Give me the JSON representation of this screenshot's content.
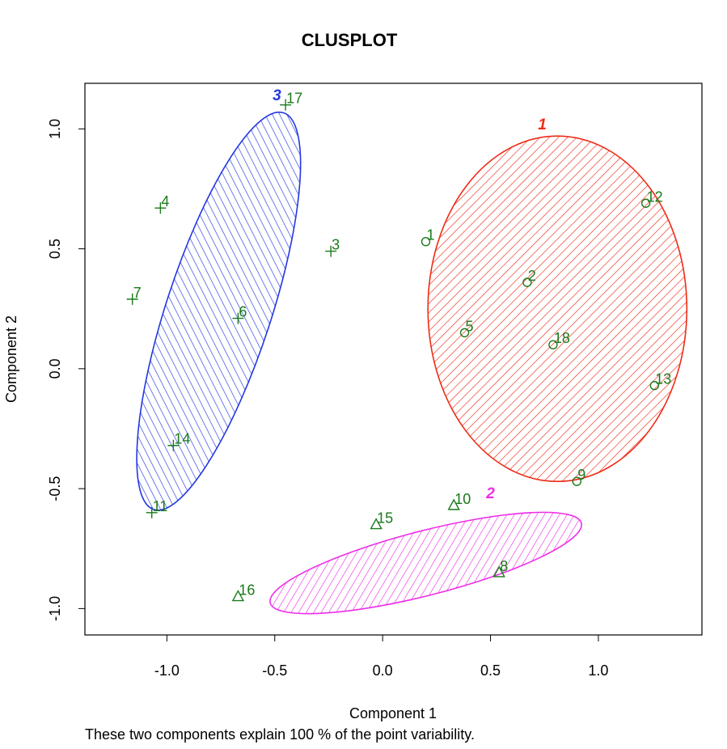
{
  "chart_data": {
    "type": "scatter",
    "title": "CLUSPLOT",
    "xlabel": "Component 1",
    "ylabel": "Component 2",
    "subtitle": "These two components explain 100 % of the point variability.",
    "xlim": [
      -1.38,
      1.48
    ],
    "ylim": [
      -1.11,
      1.19
    ],
    "x_ticks": [
      -1.0,
      -0.5,
      0.0,
      0.5,
      1.0
    ],
    "x_tick_labels": [
      "-1.0",
      "-0.5",
      "0.0",
      "0.5",
      "1.0"
    ],
    "y_ticks": [
      -1.0,
      -0.5,
      0.0,
      0.5,
      1.0
    ],
    "y_tick_labels": [
      "-1.0",
      "-0.5",
      "0.0",
      "0.5",
      "1.0"
    ],
    "grid": false,
    "point_color": "#1a7a1a",
    "clusters": [
      {
        "label": "1",
        "color": "#ee2c16",
        "marker": "circle",
        "ellipse": {
          "cx": 0.81,
          "cy": 0.25,
          "rx": 0.6,
          "ry": 0.72,
          "angle_deg": 0
        },
        "points": [
          {
            "label": "1",
            "x": 0.2,
            "y": 0.53
          },
          {
            "label": "2",
            "x": 0.67,
            "y": 0.36
          },
          {
            "label": "5",
            "x": 0.38,
            "y": 0.15
          },
          {
            "label": "18",
            "x": 0.79,
            "y": 0.1
          },
          {
            "label": "12",
            "x": 1.22,
            "y": 0.69
          },
          {
            "label": "13",
            "x": 1.26,
            "y": -0.07
          },
          {
            "label": "9",
            "x": 0.9,
            "y": -0.47
          }
        ]
      },
      {
        "label": "2",
        "color": "#ee2ee8",
        "marker": "triangle",
        "ellipse": {
          "cx": 0.2,
          "cy": -0.81,
          "rx": 0.74,
          "ry": 0.135,
          "angle_deg": 13
        },
        "points": [
          {
            "label": "10",
            "x": 0.33,
            "y": -0.57
          },
          {
            "label": "15",
            "x": -0.03,
            "y": -0.65
          },
          {
            "label": "8",
            "x": 0.54,
            "y": -0.85
          },
          {
            "label": "16",
            "x": -0.67,
            "y": -0.95
          }
        ]
      },
      {
        "label": "3",
        "color": "#2438e0",
        "marker": "plus",
        "ellipse": {
          "cx": -0.76,
          "cy": 0.24,
          "rx": 0.88,
          "ry": 0.24,
          "angle_deg": 70
        },
        "points": [
          {
            "label": "17",
            "x": -0.45,
            "y": 1.1
          },
          {
            "label": "4",
            "x": -1.03,
            "y": 0.67
          },
          {
            "label": "3",
            "x": -0.24,
            "y": 0.49
          },
          {
            "label": "7",
            "x": -1.16,
            "y": 0.29
          },
          {
            "label": "6",
            "x": -0.67,
            "y": 0.21
          },
          {
            "label": "14",
            "x": -0.97,
            "y": -0.32
          },
          {
            "label": "11",
            "x": -1.07,
            "y": -0.6
          }
        ]
      }
    ]
  }
}
